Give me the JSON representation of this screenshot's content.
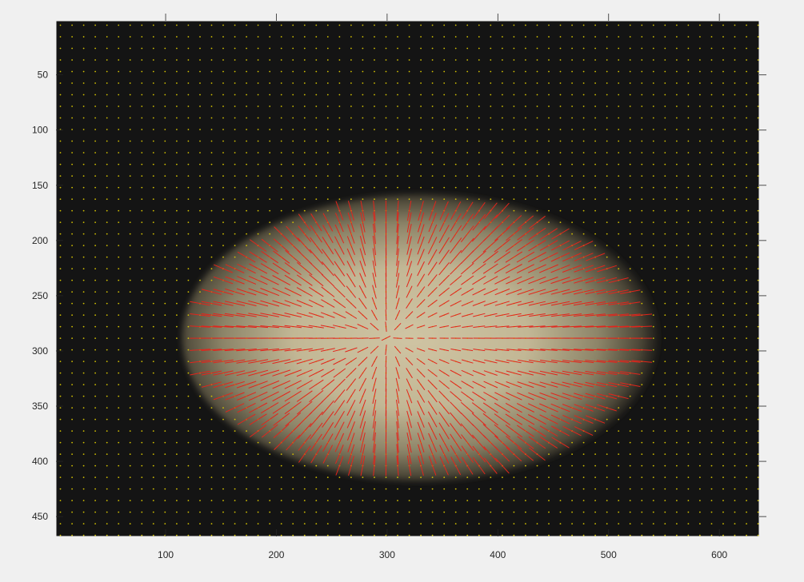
{
  "chart_data": {
    "type": "image-quiver",
    "title": "",
    "xlabel": "",
    "ylabel": "",
    "xlim": [
      1,
      636
    ],
    "ylim": [
      1,
      468
    ],
    "y_direction": "reverse",
    "grid": false,
    "background": {
      "description": "grayscale microscopy image of an ellipsoidal cell/embryo on dark background",
      "ellipse_center": [
        330,
        288
      ],
      "ellipse_radii": [
        215,
        130
      ]
    },
    "x_ticks": [
      100,
      200,
      300,
      400,
      500,
      600
    ],
    "y_ticks": [
      50,
      100,
      150,
      200,
      250,
      300,
      350,
      400,
      450
    ],
    "quiver": {
      "grid_start": 5,
      "grid_step": 10.5,
      "arrow_scale": 5.5,
      "dot_color": "#d4c200",
      "arrow_color": "#e3241b"
    }
  },
  "colors": {
    "figure_bg": "#f0f0f0",
    "image_bg": "#141414",
    "ellipse_center": "#cbbf9c",
    "axis": "#262626"
  }
}
